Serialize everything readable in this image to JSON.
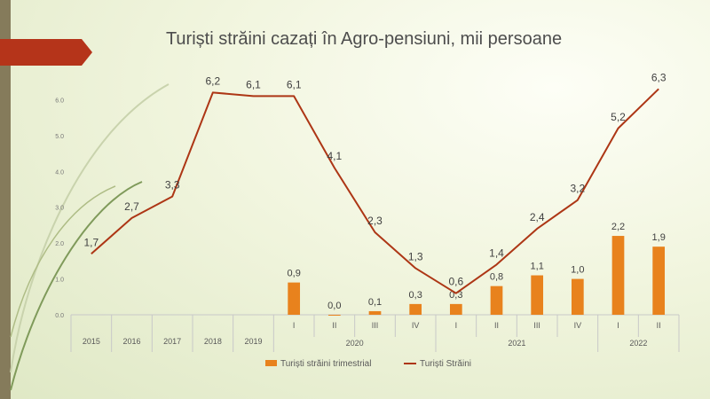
{
  "chart_data": {
    "type": "bar+line",
    "title": "Turiști străini cazați în Agro-pensiuni, mii persoane",
    "ylim": [
      0,
      7
    ],
    "y_ticks": [
      "0.0",
      "1.0",
      "2.0",
      "3.0",
      "4.0",
      "5.0",
      "6.0"
    ],
    "categories": [
      "2015",
      "2016",
      "2017",
      "2018",
      "2019",
      "I",
      "II",
      "III",
      "IV",
      "I",
      "II",
      "III",
      "IV",
      "I",
      "II"
    ],
    "groups": [
      {
        "label": "2020",
        "from": 5,
        "to": 8
      },
      {
        "label": "2021",
        "from": 9,
        "to": 12
      },
      {
        "label": "2022",
        "from": 13,
        "to": 14
      }
    ],
    "series": [
      {
        "name": "Turiști străini trimestrial",
        "type": "bar",
        "color": "#e8821d",
        "values": [
          null,
          null,
          null,
          null,
          null,
          0.9,
          0.0,
          0.1,
          0.3,
          0.3,
          0.8,
          1.1,
          1.0,
          2.2,
          1.9
        ],
        "labels": [
          "",
          "",
          "",
          "",
          "",
          "0,9",
          "0,0",
          "0,1",
          "0,3",
          "0,3",
          "0,8",
          "1,1",
          "1,0",
          "2,2",
          "1,9"
        ]
      },
      {
        "name": "Turiști Străini",
        "type": "line",
        "color": "#ad3615",
        "values": [
          1.7,
          2.7,
          3.3,
          6.2,
          6.1,
          6.1,
          4.1,
          2.3,
          1.3,
          0.6,
          1.4,
          2.4,
          3.2,
          5.2,
          6.3
        ],
        "labels": [
          "1,7",
          "2,7",
          "3,3",
          "6,2",
          "6,1",
          "6,1",
          "4,1",
          "2,3",
          "1,3",
          "0,6",
          "1,4",
          "2,4",
          "3,2",
          "5,2",
          "6,3"
        ]
      }
    ],
    "legend_position": "bottom",
    "grid": false
  }
}
